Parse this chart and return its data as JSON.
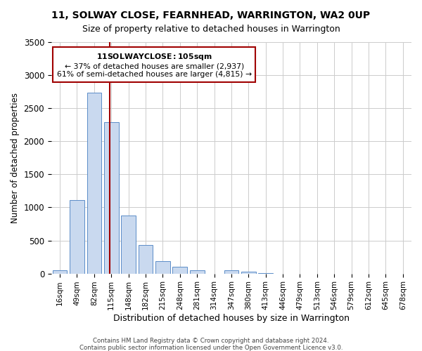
{
  "title": "11, SOLWAY CLOSE, FEARNHEAD, WARRINGTON, WA2 0UP",
  "subtitle": "Size of property relative to detached houses in Warrington",
  "xlabel": "Distribution of detached houses by size in Warrington",
  "ylabel": "Number of detached properties",
  "bar_labels": [
    "16sqm",
    "49sqm",
    "82sqm",
    "115sqm",
    "148sqm",
    "182sqm",
    "215sqm",
    "248sqm",
    "281sqm",
    "314sqm",
    "347sqm",
    "380sqm",
    "413sqm",
    "446sqm",
    "479sqm",
    "513sqm",
    "546sqm",
    "579sqm",
    "612sqm",
    "645sqm",
    "678sqm"
  ],
  "bar_values": [
    45,
    1110,
    2740,
    2290,
    880,
    430,
    185,
    100,
    45,
    0,
    45,
    25,
    10,
    0,
    0,
    0,
    0,
    0,
    0,
    0,
    0
  ],
  "bar_color": "#c9d9ef",
  "bar_edge_color": "#5b8dc8",
  "vline_x": 2.9,
  "vline_color": "#a00000",
  "annotation_title": "11 SOLWAY CLOSE: 105sqm",
  "annotation_line1": "← 37% of detached houses are smaller (2,937)",
  "annotation_line2": "61% of semi-detached houses are larger (4,815) →",
  "annotation_box_color": "#ffffff",
  "annotation_box_edge": "#a00000",
  "ylim": [
    0,
    3500
  ],
  "yticks": [
    0,
    500,
    1000,
    1500,
    2000,
    2500,
    3000,
    3500
  ],
  "footer1": "Contains HM Land Registry data © Crown copyright and database right 2024.",
  "footer2": "Contains public sector information licensed under the Open Government Licence v3.0.",
  "bg_color": "#ffffff",
  "grid_color": "#cccccc"
}
